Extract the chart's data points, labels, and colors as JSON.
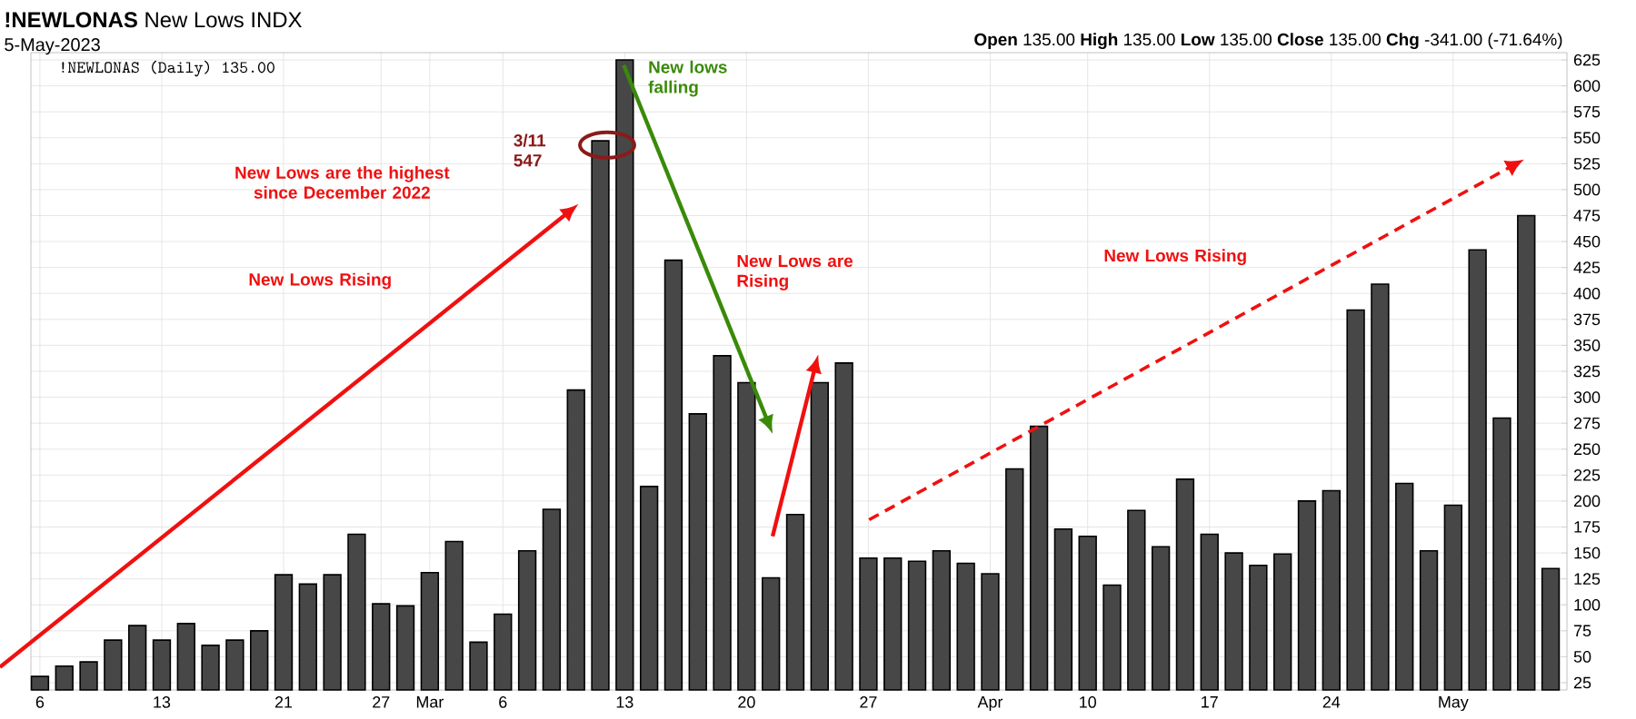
{
  "chart_data": {
    "type": "bar",
    "title": "**!NEWLONAS** New Lows INDX",
    "subtitle": "5-May-2023",
    "categories": [
      "6",
      null,
      null,
      null,
      null,
      "13",
      null,
      null,
      null,
      null,
      "21",
      null,
      null,
      null,
      "27",
      null,
      "Mar",
      null,
      null,
      "6",
      null,
      null,
      null,
      null,
      "13",
      null,
      null,
      null,
      null,
      "20",
      null,
      null,
      null,
      null,
      "27",
      null,
      null,
      null,
      null,
      "Apr",
      null,
      null,
      null,
      "10",
      null,
      null,
      null,
      null,
      "17",
      null,
      null,
      null,
      null,
      "24",
      null,
      null,
      null,
      null,
      "May",
      null,
      null,
      null,
      null
    ],
    "values": [
      31,
      41,
      45,
      66,
      80,
      66,
      82,
      61,
      66,
      75,
      129,
      120,
      129,
      168,
      101,
      99,
      131,
      161,
      64,
      91,
      152,
      192,
      307,
      547,
      625,
      214,
      432,
      284,
      340,
      314,
      126,
      187,
      314,
      333,
      145,
      145,
      142,
      152,
      140,
      130,
      231,
      272,
      173,
      166,
      119,
      191,
      156,
      221,
      168,
      150,
      138,
      149,
      200,
      210,
      384,
      409,
      217,
      152,
      196,
      442,
      280,
      475,
      135
    ],
    "color": "#474747",
    "ylim": [
      18,
      632
    ],
    "yticks": [
      25,
      50,
      75,
      100,
      125,
      150,
      175,
      200,
      225,
      250,
      275,
      300,
      325,
      350,
      375,
      400,
      425,
      450,
      475,
      500,
      525,
      550,
      575,
      600,
      625
    ],
    "grid": true,
    "annotations": [
      "!NEWLONAS (Daily) 135.00",
      "**Open** 135.00 **High** 135.00 **Low** 135.00 **Close** 135.00 **Chg** -341.00 (-71.64%)",
      "New Lows are the highest since December 2022",
      "New Lows Rising",
      "3/11 547",
      "New lows falling",
      "New Lows are Rising",
      "New Lows Rising"
    ]
  }
}
